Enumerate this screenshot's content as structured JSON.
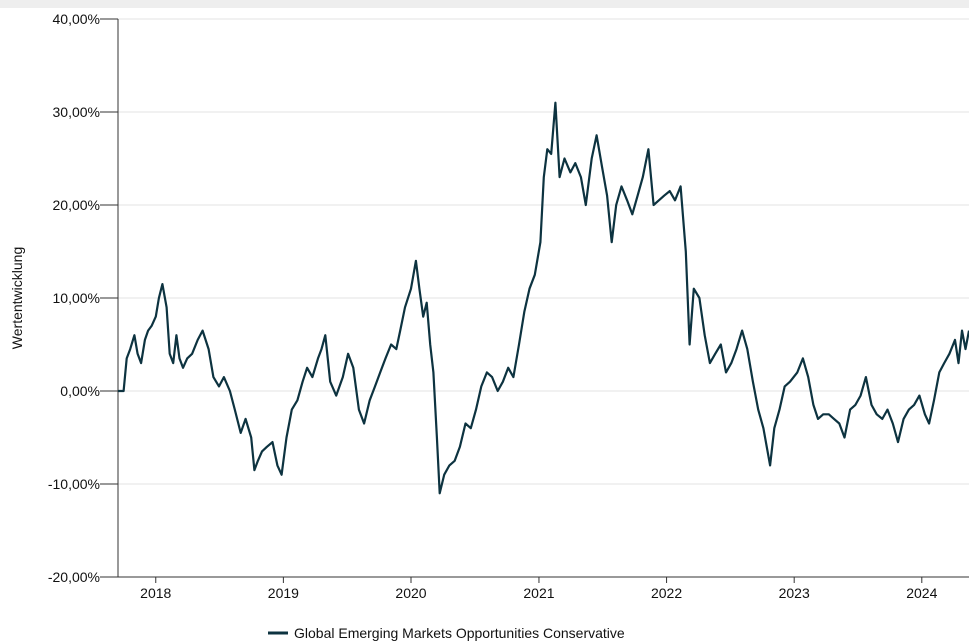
{
  "chart_data": {
    "type": "line",
    "title": "",
    "xlabel": "",
    "ylabel": "Wertentwicklung",
    "xlim": [
      "2017-09-15",
      "2024-05-15"
    ],
    "ylim": [
      -20,
      40
    ],
    "y_ticks": [
      -20,
      -10,
      0,
      10,
      20,
      30,
      40
    ],
    "y_tick_labels": [
      "-20,00%",
      "-10,00%",
      "0,00%",
      "10,00%",
      "20,00%",
      "30,00%",
      "40,00%"
    ],
    "x_tick_labels": [
      "2018",
      "2019",
      "2020",
      "2021",
      "2022",
      "2023",
      "2024"
    ],
    "x_ticks": [
      "2018-01-01",
      "2019-01-01",
      "2020-01-01",
      "2021-01-01",
      "2022-01-01",
      "2023-01-01",
      "2024-01-01"
    ],
    "grid": "horizontal",
    "legend_position": "bottom",
    "line_color": "#0d3340",
    "series": [
      {
        "name": "Global Emerging Markets Opportunities Conservative",
        "points": [
          [
            "2017-09-15",
            0.0
          ],
          [
            "2017-10-01",
            0.0
          ],
          [
            "2017-10-10",
            3.5
          ],
          [
            "2017-10-20",
            4.5
          ],
          [
            "2017-11-01",
            6.0
          ],
          [
            "2017-11-10",
            4.0
          ],
          [
            "2017-11-20",
            3.0
          ],
          [
            "2017-12-01",
            5.5
          ],
          [
            "2017-12-10",
            6.5
          ],
          [
            "2017-12-20",
            7.0
          ],
          [
            "2018-01-01",
            8.0
          ],
          [
            "2018-01-10",
            10.0
          ],
          [
            "2018-01-20",
            11.5
          ],
          [
            "2018-02-01",
            9.0
          ],
          [
            "2018-02-10",
            4.0
          ],
          [
            "2018-02-20",
            3.0
          ],
          [
            "2018-03-01",
            6.0
          ],
          [
            "2018-03-10",
            3.5
          ],
          [
            "2018-03-20",
            2.5
          ],
          [
            "2018-04-01",
            3.5
          ],
          [
            "2018-04-15",
            4.0
          ],
          [
            "2018-05-01",
            5.5
          ],
          [
            "2018-05-15",
            6.5
          ],
          [
            "2018-06-01",
            4.5
          ],
          [
            "2018-06-15",
            1.5
          ],
          [
            "2018-07-01",
            0.5
          ],
          [
            "2018-07-15",
            1.5
          ],
          [
            "2018-08-01",
            0.0
          ],
          [
            "2018-08-15",
            -2.0
          ],
          [
            "2018-09-01",
            -4.5
          ],
          [
            "2018-09-15",
            -3.0
          ],
          [
            "2018-10-01",
            -5.0
          ],
          [
            "2018-10-10",
            -8.5
          ],
          [
            "2018-10-20",
            -7.5
          ],
          [
            "2018-11-01",
            -6.5
          ],
          [
            "2018-11-15",
            -6.0
          ],
          [
            "2018-12-01",
            -5.5
          ],
          [
            "2018-12-15",
            -8.0
          ],
          [
            "2018-12-27",
            -9.0
          ],
          [
            "2019-01-10",
            -5.0
          ],
          [
            "2019-01-25",
            -2.0
          ],
          [
            "2019-02-10",
            -1.0
          ],
          [
            "2019-02-25",
            1.0
          ],
          [
            "2019-03-10",
            2.5
          ],
          [
            "2019-03-25",
            1.5
          ],
          [
            "2019-04-10",
            3.5
          ],
          [
            "2019-04-20",
            4.5
          ],
          [
            "2019-05-01",
            6.0
          ],
          [
            "2019-05-15",
            1.0
          ],
          [
            "2019-06-01",
            -0.5
          ],
          [
            "2019-06-20",
            1.5
          ],
          [
            "2019-07-05",
            4.0
          ],
          [
            "2019-07-20",
            2.5
          ],
          [
            "2019-08-05",
            -2.0
          ],
          [
            "2019-08-20",
            -3.5
          ],
          [
            "2019-09-05",
            -1.0
          ],
          [
            "2019-09-20",
            0.5
          ],
          [
            "2019-10-05",
            2.0
          ],
          [
            "2019-10-20",
            3.5
          ],
          [
            "2019-11-05",
            5.0
          ],
          [
            "2019-11-20",
            4.5
          ],
          [
            "2019-12-01",
            6.5
          ],
          [
            "2019-12-15",
            9.0
          ],
          [
            "2020-01-01",
            11.0
          ],
          [
            "2020-01-15",
            14.0
          ],
          [
            "2020-01-25",
            11.0
          ],
          [
            "2020-02-05",
            8.0
          ],
          [
            "2020-02-15",
            9.5
          ],
          [
            "2020-02-25",
            5.0
          ],
          [
            "2020-03-05",
            2.0
          ],
          [
            "2020-03-15",
            -5.0
          ],
          [
            "2020-03-23",
            -11.0
          ],
          [
            "2020-04-05",
            -9.0
          ],
          [
            "2020-04-20",
            -8.0
          ],
          [
            "2020-05-05",
            -7.5
          ],
          [
            "2020-05-20",
            -6.0
          ],
          [
            "2020-06-05",
            -3.5
          ],
          [
            "2020-06-20",
            -4.0
          ],
          [
            "2020-07-05",
            -2.0
          ],
          [
            "2020-07-20",
            0.5
          ],
          [
            "2020-08-05",
            2.0
          ],
          [
            "2020-08-20",
            1.5
          ],
          [
            "2020-09-05",
            0.0
          ],
          [
            "2020-09-20",
            1.0
          ],
          [
            "2020-10-05",
            2.5
          ],
          [
            "2020-10-20",
            1.5
          ],
          [
            "2020-11-05",
            5.0
          ],
          [
            "2020-11-20",
            8.5
          ],
          [
            "2020-12-05",
            11.0
          ],
          [
            "2020-12-20",
            12.5
          ],
          [
            "2021-01-05",
            16.0
          ],
          [
            "2021-01-15",
            23.0
          ],
          [
            "2021-01-25",
            26.0
          ],
          [
            "2021-02-05",
            25.5
          ],
          [
            "2021-02-17",
            31.0
          ],
          [
            "2021-03-01",
            23.0
          ],
          [
            "2021-03-15",
            25.0
          ],
          [
            "2021-04-01",
            23.5
          ],
          [
            "2021-04-15",
            24.5
          ],
          [
            "2021-05-01",
            23.0
          ],
          [
            "2021-05-15",
            20.0
          ],
          [
            "2021-06-01",
            25.0
          ],
          [
            "2021-06-15",
            27.5
          ],
          [
            "2021-07-01",
            24.0
          ],
          [
            "2021-07-15",
            21.0
          ],
          [
            "2021-07-28",
            16.0
          ],
          [
            "2021-08-10",
            20.0
          ],
          [
            "2021-08-25",
            22.0
          ],
          [
            "2021-09-10",
            20.5
          ],
          [
            "2021-09-25",
            19.0
          ],
          [
            "2021-10-10",
            21.0
          ],
          [
            "2021-10-25",
            23.0
          ],
          [
            "2021-11-10",
            26.0
          ],
          [
            "2021-11-25",
            20.0
          ],
          [
            "2021-12-10",
            20.5
          ],
          [
            "2021-12-25",
            21.0
          ],
          [
            "2022-01-10",
            21.5
          ],
          [
            "2022-01-25",
            20.5
          ],
          [
            "2022-02-10",
            22.0
          ],
          [
            "2022-02-25",
            15.0
          ],
          [
            "2022-03-08",
            5.0
          ],
          [
            "2022-03-20",
            11.0
          ],
          [
            "2022-04-05",
            10.0
          ],
          [
            "2022-04-20",
            6.0
          ],
          [
            "2022-05-05",
            3.0
          ],
          [
            "2022-05-20",
            4.0
          ],
          [
            "2022-06-05",
            5.0
          ],
          [
            "2022-06-20",
            2.0
          ],
          [
            "2022-07-05",
            3.0
          ],
          [
            "2022-07-20",
            4.5
          ],
          [
            "2022-08-05",
            6.5
          ],
          [
            "2022-08-20",
            4.5
          ],
          [
            "2022-09-05",
            1.0
          ],
          [
            "2022-09-20",
            -2.0
          ],
          [
            "2022-10-05",
            -4.0
          ],
          [
            "2022-10-24",
            -8.0
          ],
          [
            "2022-11-05",
            -4.0
          ],
          [
            "2022-11-20",
            -2.0
          ],
          [
            "2022-12-05",
            0.5
          ],
          [
            "2022-12-20",
            1.0
          ],
          [
            "2023-01-10",
            2.0
          ],
          [
            "2023-01-26",
            3.5
          ],
          [
            "2023-02-10",
            1.5
          ],
          [
            "2023-02-25",
            -1.5
          ],
          [
            "2023-03-10",
            -3.0
          ],
          [
            "2023-03-25",
            -2.5
          ],
          [
            "2023-04-10",
            -2.5
          ],
          [
            "2023-04-25",
            -3.0
          ],
          [
            "2023-05-10",
            -3.5
          ],
          [
            "2023-05-25",
            -5.0
          ],
          [
            "2023-06-10",
            -2.0
          ],
          [
            "2023-06-25",
            -1.5
          ],
          [
            "2023-07-10",
            -0.5
          ],
          [
            "2023-07-25",
            1.5
          ],
          [
            "2023-08-10",
            -1.5
          ],
          [
            "2023-08-25",
            -2.5
          ],
          [
            "2023-09-10",
            -3.0
          ],
          [
            "2023-09-25",
            -2.0
          ],
          [
            "2023-10-10",
            -3.5
          ],
          [
            "2023-10-25",
            -5.5
          ],
          [
            "2023-11-10",
            -3.0
          ],
          [
            "2023-11-25",
            -2.0
          ],
          [
            "2023-12-10",
            -1.5
          ],
          [
            "2023-12-25",
            -0.5
          ],
          [
            "2024-01-10",
            -2.5
          ],
          [
            "2024-01-22",
            -3.5
          ],
          [
            "2024-02-05",
            -1.0
          ],
          [
            "2024-02-20",
            2.0
          ],
          [
            "2024-03-05",
            3.0
          ],
          [
            "2024-03-20",
            4.0
          ],
          [
            "2024-04-05",
            5.5
          ],
          [
            "2024-04-15",
            3.0
          ],
          [
            "2024-04-25",
            6.5
          ],
          [
            "2024-05-05",
            4.5
          ],
          [
            "2024-05-15",
            6.5
          ]
        ]
      }
    ]
  }
}
